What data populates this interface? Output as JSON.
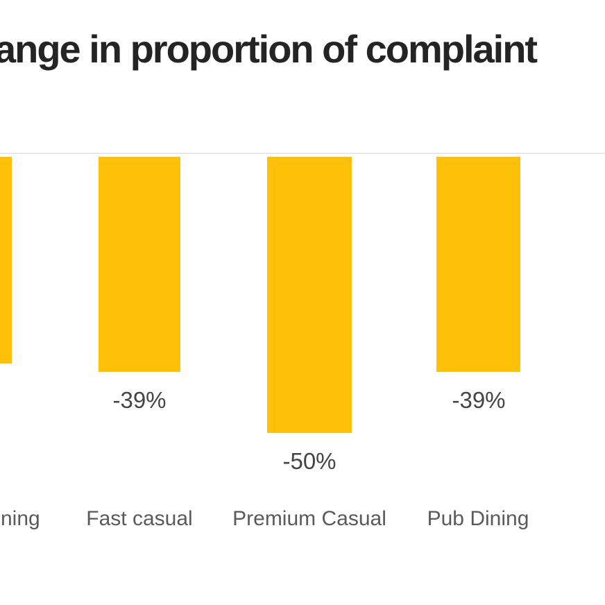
{
  "title": {
    "visible_text": "ange in proportion of complaint",
    "color": "#242424"
  },
  "chart_data": {
    "type": "bar",
    "title": "ange in proportion of complaint",
    "orientation": "vertical",
    "unit": "%",
    "categories": [
      "ning",
      "Fast casual",
      "Premium Casual",
      "Pub Dining"
    ],
    "values": [
      -37.5,
      -39,
      -50,
      -39
    ],
    "data_labels": [
      "",
      "-39%",
      "-50%",
      "-39%"
    ],
    "bar_color": "#FFC107",
    "value_label_color": "#444444",
    "category_label_color": "#5A5A5A",
    "gridline_color": "#E8E8E8",
    "background_color": "#FFFFFF",
    "baseline": 0,
    "ylim": [
      -55,
      0
    ],
    "legend": "none",
    "grid": "single horizontal zero gridline",
    "crop_notes": {
      "title_cropped_both_sides": true,
      "leftmost_bar_partially_visible": true,
      "leftmost_category_visible_fragment": "ning",
      "leftmost_value_label_not_visible": true
    }
  }
}
